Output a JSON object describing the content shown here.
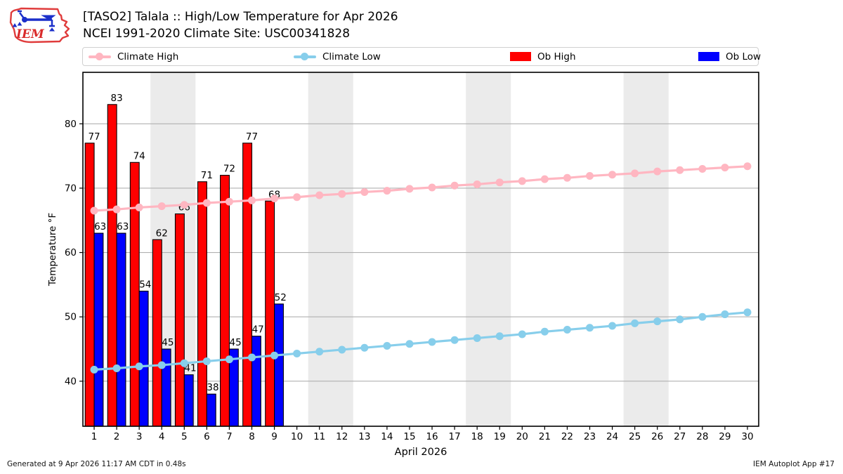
{
  "header": {
    "title_line1": "[TASO2] Talala :: High/Low Temperature for Apr 2026",
    "title_line2": "NCEI 1991-2020 Climate Site: USC00341828",
    "logo_text": "IEM"
  },
  "legend": {
    "items": [
      {
        "label": "Climate High",
        "type": "line",
        "color": "#ffb6c1"
      },
      {
        "label": "Climate Low",
        "type": "line",
        "color": "#87ceeb"
      },
      {
        "label": "Ob High",
        "type": "patch",
        "color": "#ff0000"
      },
      {
        "label": "Ob Low",
        "type": "patch",
        "color": "#0000ff"
      }
    ]
  },
  "footer": {
    "left": "Generated at 9 Apr 2026 11:17 AM CDT in 0.48s",
    "right": "IEM Autoplot App #17"
  },
  "chart_data": {
    "type": "bar+line",
    "xlabel": "April 2026",
    "ylabel": "Temperature °F",
    "xlim": [
      0.5,
      30.5
    ],
    "ylim": [
      33,
      88
    ],
    "yticks": [
      40,
      50,
      60,
      70,
      80
    ],
    "x": [
      1,
      2,
      3,
      4,
      5,
      6,
      7,
      8,
      9,
      10,
      11,
      12,
      13,
      14,
      15,
      16,
      17,
      18,
      19,
      20,
      21,
      22,
      23,
      24,
      25,
      26,
      27,
      28,
      29,
      30
    ],
    "weekend_bands": [
      [
        3.5,
        5.5
      ],
      [
        10.5,
        12.5
      ],
      [
        17.5,
        19.5
      ],
      [
        24.5,
        26.5
      ]
    ],
    "band_color": "#ebebeb",
    "grid_color": "#b0b0b0",
    "series": [
      {
        "name": "Climate High",
        "type": "line",
        "color": "#ffb6c1",
        "values": [
          66.5,
          66.7,
          67.0,
          67.2,
          67.4,
          67.7,
          67.9,
          68.1,
          68.4,
          68.6,
          68.9,
          69.1,
          69.4,
          69.6,
          69.9,
          70.1,
          70.4,
          70.6,
          70.9,
          71.1,
          71.4,
          71.6,
          71.9,
          72.1,
          72.3,
          72.6,
          72.8,
          73.0,
          73.2,
          73.4
        ]
      },
      {
        "name": "Climate Low",
        "type": "line",
        "color": "#87ceeb",
        "values": [
          41.8,
          42.0,
          42.3,
          42.5,
          42.8,
          43.1,
          43.4,
          43.7,
          44.0,
          44.3,
          44.6,
          44.9,
          45.2,
          45.5,
          45.8,
          46.1,
          46.4,
          46.7,
          47.0,
          47.3,
          47.7,
          48.0,
          48.3,
          48.6,
          49.0,
          49.3,
          49.6,
          50.0,
          50.4,
          50.7
        ]
      },
      {
        "name": "Ob High",
        "type": "bar",
        "color": "#ff0000",
        "values": [
          77,
          83,
          74,
          62,
          66,
          71,
          72,
          77,
          68,
          null,
          null,
          null,
          null,
          null,
          null,
          null,
          null,
          null,
          null,
          null,
          null,
          null,
          null,
          null,
          null,
          null,
          null,
          null,
          null,
          null
        ]
      },
      {
        "name": "Ob Low",
        "type": "bar",
        "color": "#0000ff",
        "values": [
          63,
          63,
          54,
          45,
          41,
          38,
          45,
          47,
          52,
          null,
          null,
          null,
          null,
          null,
          null,
          null,
          null,
          null,
          null,
          null,
          null,
          null,
          null,
          null,
          null,
          null,
          null,
          null,
          null,
          null
        ]
      }
    ]
  }
}
